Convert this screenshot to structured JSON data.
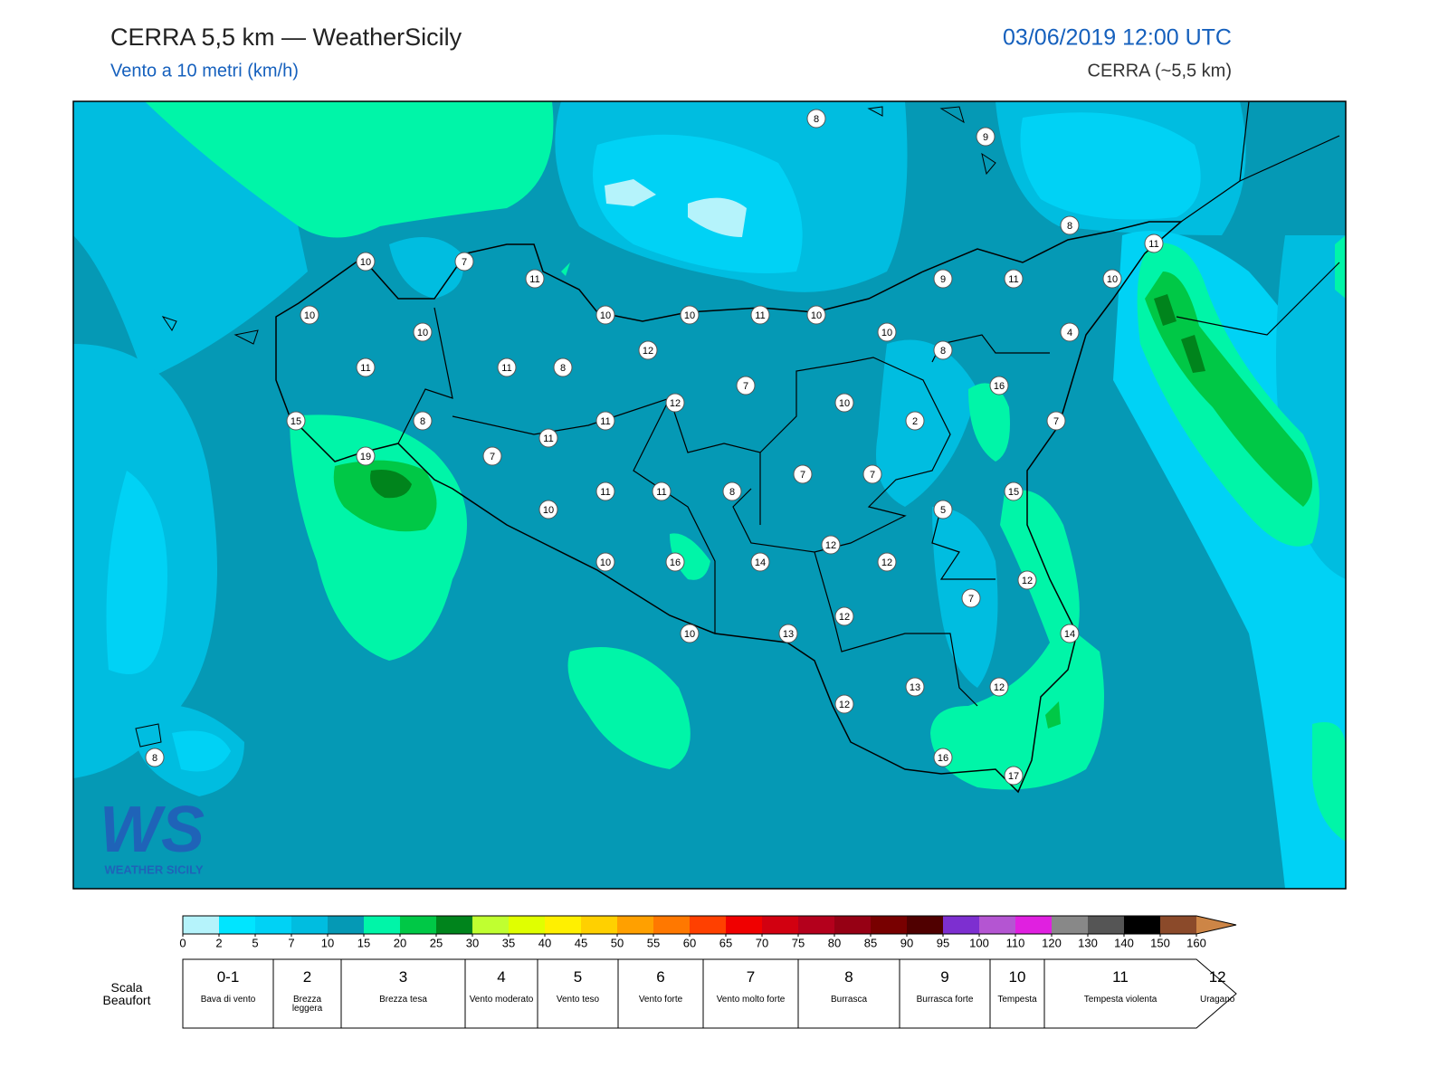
{
  "header": {
    "title": "CERRA 5,5 km — WeatherSicily",
    "subtitle": "Vento a 10 metri (km/h)",
    "datetime": "03/06/2019 12:00 UTC",
    "source": "CERRA (~5,5 km)"
  },
  "logo": {
    "mark": "WS",
    "text": "WEATHER SICILY"
  },
  "stations": [
    8,
    9,
    8,
    11,
    10,
    7,
    11,
    9,
    11,
    10,
    10,
    10,
    10,
    11,
    10,
    10,
    10,
    4,
    12,
    8,
    11,
    11,
    8,
    7,
    16,
    12,
    10,
    15,
    8,
    11,
    2,
    7,
    11,
    19,
    7,
    7,
    7,
    11,
    11,
    8,
    15,
    10,
    5,
    12,
    10,
    16,
    14,
    12,
    12,
    7,
    12,
    10,
    13,
    14,
    13,
    12,
    12,
    16,
    17,
    8
  ],
  "colorbar": {
    "levels": [
      0,
      2,
      5,
      7,
      10,
      15,
      20,
      25,
      30,
      35,
      40,
      45,
      50,
      55,
      60,
      65,
      70,
      75,
      80,
      85,
      90,
      95,
      100,
      110,
      120,
      130,
      140,
      150,
      160
    ],
    "colors": [
      "#b5f3fb",
      "#00e5ff",
      "#00d2f5",
      "#00bde0",
      "#0599b5",
      "#00f5a8",
      "#00c846",
      "#00841c",
      "#c0ff30",
      "#e0ff00",
      "#fff000",
      "#ffd000",
      "#ffa000",
      "#ff7800",
      "#ff4000",
      "#f00000",
      "#d20010",
      "#b4001c",
      "#960014",
      "#780000",
      "#500000",
      "#7d2fd0",
      "#b455d2",
      "#e020e0",
      "#888888",
      "#555555",
      "#000000",
      "#8b4a2a"
    ],
    "extend_color": "#cd8546"
  },
  "beaufort": {
    "title": "Scala Beaufort",
    "classes": [
      {
        "force": "0-1",
        "label": "Bava di vento"
      },
      {
        "force": 2,
        "label": "Brezza leggera"
      },
      {
        "force": 3,
        "label": "Brezza tesa"
      },
      {
        "force": 4,
        "label": "Vento moderato"
      },
      {
        "force": 5,
        "label": "Vento teso"
      },
      {
        "force": 6,
        "label": "Vento forte"
      },
      {
        "force": 7,
        "label": "Vento molto forte"
      },
      {
        "force": 8,
        "label": "Burrasca"
      },
      {
        "force": 9,
        "label": "Burrasca forte"
      },
      {
        "force": 10,
        "label": "Tempesta"
      },
      {
        "force": 11,
        "label": "Tempesta violenta"
      },
      {
        "force": 12,
        "label": "Uragano"
      }
    ]
  }
}
